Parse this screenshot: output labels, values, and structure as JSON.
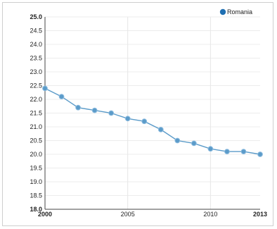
{
  "chart_data": {
    "type": "line",
    "title": "",
    "xlabel": "",
    "ylabel": "",
    "x": [
      2000,
      2001,
      2002,
      2003,
      2004,
      2005,
      2006,
      2007,
      2008,
      2009,
      2010,
      2011,
      2012,
      2013
    ],
    "series": [
      {
        "name": "Romania",
        "color": "#5b9bc9",
        "values": [
          22.4,
          22.1,
          21.7,
          21.6,
          21.5,
          21.3,
          21.2,
          20.9,
          20.5,
          20.4,
          20.2,
          20.1,
          20.1,
          20.0
        ]
      }
    ],
    "xlim": [
      2000,
      2013
    ],
    "ylim": [
      18.0,
      25.0
    ],
    "x_ticks": [
      "2000",
      "2005",
      "2010",
      "2013"
    ],
    "y_ticks": [
      "18.0",
      "18.5",
      "19.0",
      "19.5",
      "20.0",
      "20.5",
      "21.0",
      "21.5",
      "22.0",
      "22.5",
      "23.0",
      "23.5",
      "24.0",
      "24.5",
      "25.0"
    ],
    "grid": true,
    "legend_position": "top-right"
  }
}
